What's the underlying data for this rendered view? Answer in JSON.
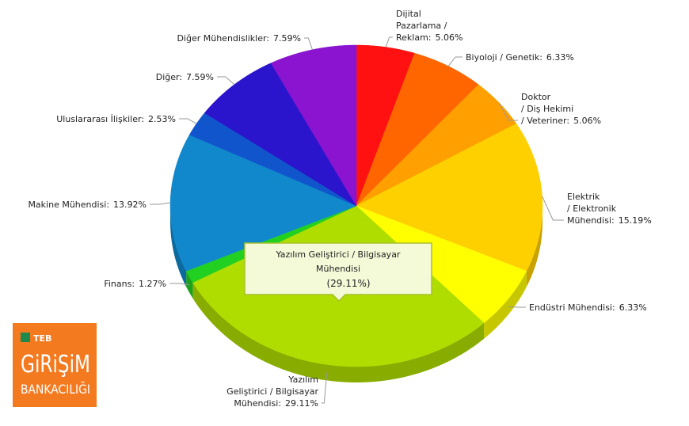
{
  "chart_data": {
    "type": "pie3d",
    "categories": [
      [
        "Dijital",
        "Pazarlama /",
        "Reklam:"
      ],
      [
        "Biyoloji / Genetik:"
      ],
      [
        "Doktor",
        "/ Diş Hekimi",
        "/ Veteriner:"
      ],
      [
        "Elektrik",
        "/ Elektronik",
        "Mühendisi:"
      ],
      [
        "Endüstri Mühendisi:"
      ],
      [
        "Yazılım",
        "Geliştirici / Bilgisayar",
        "Mühendisi:"
      ],
      [
        "Finans:"
      ],
      [
        "Makine Mühendisi:"
      ],
      [
        "Uluslararası İlişkiler:"
      ],
      [
        "Diğer:"
      ],
      [
        "Diğer Mühendislikler:"
      ]
    ],
    "values": [
      5.06,
      6.33,
      5.06,
      15.19,
      6.33,
      29.11,
      1.27,
      13.92,
      2.53,
      7.59,
      7.59
    ],
    "value_labels": [
      "5.06%",
      "6.33%",
      "5.06%",
      "15.19%",
      "6.33%",
      "29.11%",
      "1.27%",
      "13.92%",
      "2.53%",
      "7.59%",
      "7.59%"
    ],
    "colors": [
      "#ff1111",
      "#ff6600",
      "#ffa000",
      "#ffd000",
      "#ffff00",
      "#b0dd00",
      "#22d022",
      "#1188cc",
      "#1155cc",
      "#2a14cc",
      "#8a14d0"
    ],
    "tooltip": {
      "lines": [
        "Yazılım Geliştirici / Bilgisayar",
        "Mühendisi"
      ],
      "value_label": "(29.11%)"
    }
  },
  "logo": {
    "brand": "TEB",
    "line1": "GiRiŞiM",
    "line2": "BANKACILIĞI"
  }
}
